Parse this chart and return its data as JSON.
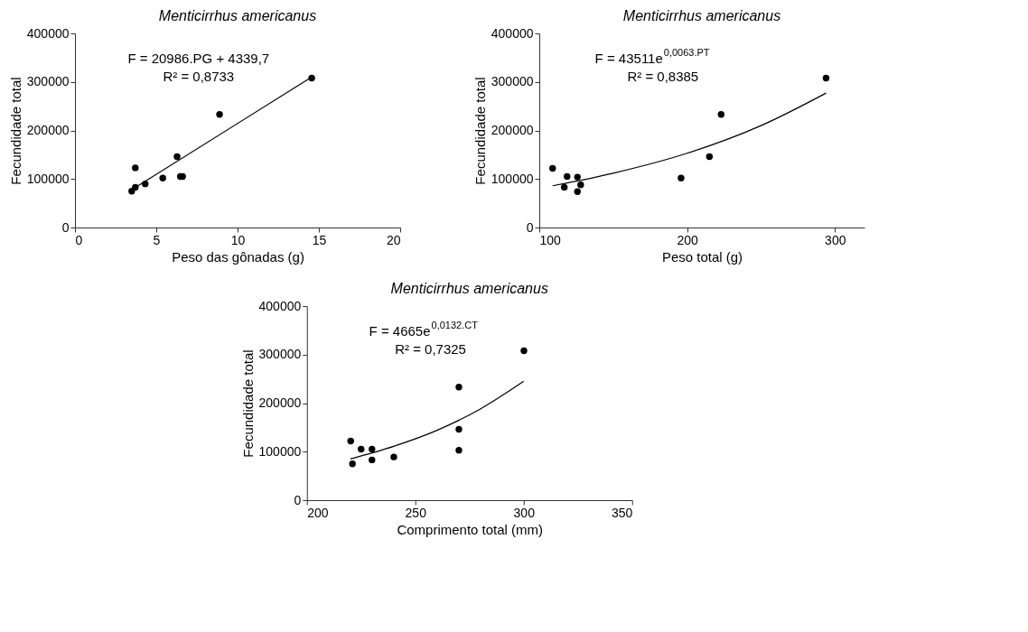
{
  "chart_data": [
    {
      "type": "scatter",
      "title": "Menticirrhus americanus",
      "xlabel": "Peso das gônadas (g)",
      "ylabel": "Fecundidade total",
      "xlim": [
        0,
        20
      ],
      "xticks": [
        0,
        5,
        10,
        15,
        20
      ],
      "ylim": [
        0,
        400000
      ],
      "yticks": [
        0,
        100000,
        200000,
        300000,
        400000
      ],
      "grid": false,
      "annotations": [
        "F = 20986.PG + 4339,7",
        "R² = 0,8733"
      ],
      "series": [
        {
          "marker": "circle",
          "color": "#000000",
          "x": [
            14.56,
            8.89,
            6.28,
            3.71,
            5.4,
            6.48,
            6.62,
            4.32,
            3.71,
            3.49
          ],
          "values": [
            308000,
            233000,
            146000,
            123000,
            102000,
            105000,
            105000,
            90000,
            83000,
            75000
          ]
        },
        {
          "type": "line",
          "marker": "none",
          "color": "#000000",
          "line_style": "solid",
          "x": [
            3.5,
            14.5
          ],
          "values": [
            78000,
            309000
          ]
        }
      ]
    },
    {
      "type": "scatter",
      "title": "Menticirrhus americanus",
      "xlabel": "Peso total (g)",
      "ylabel": "Fecundidade total",
      "xlim": [
        100,
        320
      ],
      "xticks": [
        100,
        200,
        300
      ],
      "ylim": [
        0,
        400000
      ],
      "yticks": [
        0,
        100000,
        200000,
        300000,
        400000
      ],
      "grid": false,
      "annotations": [
        "F = 43511e$^{0,0063.PT}$",
        "R² = 0,8385"
      ],
      "series": [
        {
          "marker": "circle",
          "color": "#000000",
          "x": [
            109.0,
            118.8,
            125.8,
            116.9,
            128.0,
            125.8,
            195.9,
            215.1,
            223.0,
            294.0
          ],
          "values": [
            122000,
            105000,
            104000,
            83000,
            88000,
            74000,
            102000,
            146000,
            233000,
            308000
          ]
        },
        {
          "type": "line",
          "marker": "none",
          "color": "#000000",
          "line_style": "solid",
          "x": [
            109,
            150,
            200,
            250,
            294
          ],
          "values": [
            86000,
            112000,
            153000,
            210000,
            277000
          ]
        }
      ]
    },
    {
      "type": "scatter",
      "title": "Menticirrhus americanus",
      "xlabel": "Comprimento total (mm)",
      "ylabel": "Fecundidade total",
      "xlim": [
        200,
        350
      ],
      "xticks": [
        200,
        250,
        300,
        350
      ],
      "ylim": [
        0,
        400000
      ],
      "yticks": [
        0,
        100000,
        200000,
        300000,
        400000
      ],
      "grid": false,
      "annotations": [
        "F = 4665e$^{0,0132.CT}$",
        "R² = 0,7325"
      ],
      "series": [
        {
          "marker": "circle",
          "color": "#000000",
          "x": [
            220.2,
            225.0,
            230.0,
            221.0,
            230.0,
            240.1,
            270.1,
            270.1,
            270.1,
            300.1
          ],
          "values": [
            122000,
            105000,
            105000,
            75000,
            83000,
            89000,
            233000,
            146000,
            103000,
            308000
          ]
        },
        {
          "type": "line",
          "marker": "none",
          "color": "#000000",
          "line_style": "solid",
          "x": [
            220,
            240,
            260,
            280,
            300
          ],
          "values": [
            85000,
            111000,
            144000,
            188000,
            245000
          ]
        }
      ]
    }
  ]
}
